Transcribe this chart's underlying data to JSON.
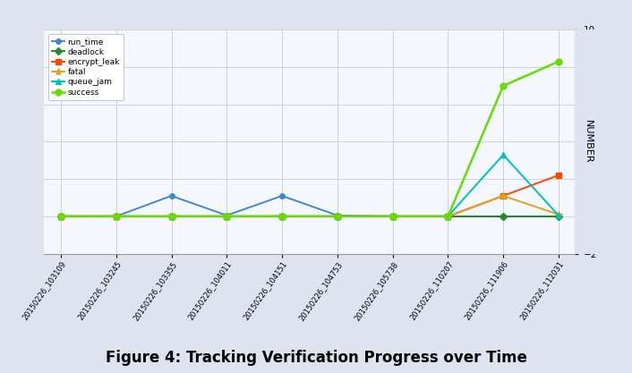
{
  "x_labels": [
    "20150226_103109",
    "20150226_103245",
    "20150226_103355",
    "20150226_104011",
    "20150226_104151",
    "20150226_104753",
    "20150226_105738",
    "20150226_110207",
    "20150226_111906",
    "20150226_112031"
  ],
  "series": {
    "run_time": {
      "color": "#4488CC",
      "marker": "o",
      "markersize": 4,
      "linewidth": 1.4,
      "values": [
        0,
        0,
        1.1,
        0.05,
        1.1,
        0.05,
        0,
        0,
        0,
        0
      ]
    },
    "deadlock": {
      "color": "#228B22",
      "marker": "D",
      "markersize": 4,
      "linewidth": 1.4,
      "values": [
        0,
        0,
        0,
        0,
        0,
        0,
        0,
        0,
        0,
        0
      ]
    },
    "encrypt_leak": {
      "color": "#FF4500",
      "marker": "s",
      "markersize": 5,
      "linewidth": 1.4,
      "values": [
        0,
        0,
        0,
        0,
        0,
        0,
        0,
        0,
        1.1,
        2.2
      ]
    },
    "fatal": {
      "color": "#DAA520",
      "marker": "*",
      "markersize": 6,
      "linewidth": 1.4,
      "values": [
        0,
        0,
        0,
        0,
        0,
        0,
        0,
        0,
        1.1,
        0.1
      ]
    },
    "queue_jam": {
      "color": "#00BFBF",
      "marker": "^",
      "markersize": 5,
      "linewidth": 1.4,
      "values": [
        0,
        0,
        0,
        0,
        0,
        0,
        0,
        0,
        3.3,
        0.05
      ]
    },
    "success": {
      "color": "#66DD00",
      "marker": "o",
      "markersize": 5,
      "linewidth": 1.8,
      "values": [
        0,
        0,
        0,
        0,
        0,
        0,
        0,
        0,
        7.0,
        8.3
      ]
    }
  },
  "ylim": [
    -2,
    10
  ],
  "yticks": [
    -2,
    0,
    2,
    4,
    6,
    8,
    10
  ],
  "ylabel": "NUMBER",
  "title": "Figure 4: Tracking Verification Progress over Time",
  "title_fontsize": 12,
  "title_fontweight": "bold",
  "plot_bg": "#f5f7ff",
  "fig_bg": "#dde4f0",
  "right_panel_bg": "#dde4f0",
  "grid_color": "#cccccc",
  "legend_order": [
    "run_time",
    "deadlock",
    "encrypt_leak",
    "fatal",
    "queue_jam",
    "success"
  ]
}
